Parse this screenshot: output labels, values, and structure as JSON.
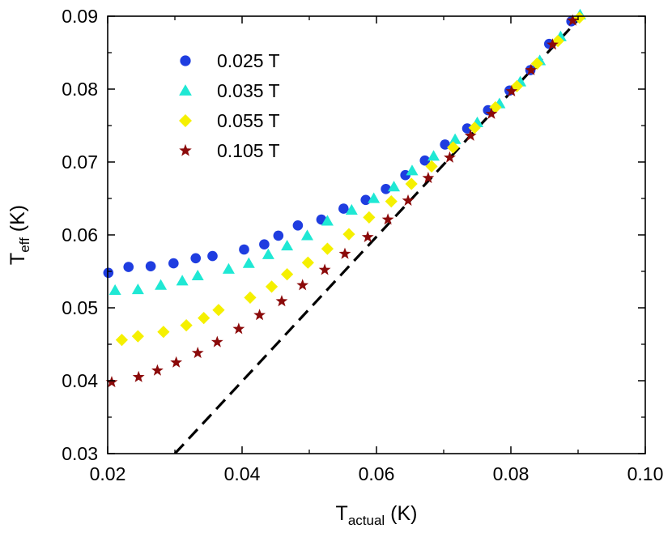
{
  "chart_data": {
    "type": "scatter",
    "xlabel": {
      "main": "T",
      "sub": "actual",
      "unit": " (K)"
    },
    "ylabel": {
      "main": "T",
      "sub": "eff",
      "unit": " (K)"
    },
    "xlim": [
      0.02,
      0.1
    ],
    "ylim": [
      0.03,
      0.09
    ],
    "x_ticks": [
      "0.02",
      "0.04",
      "0.06",
      "0.08",
      "0.10"
    ],
    "x_tick_values": [
      0.02,
      0.04,
      0.06,
      0.08,
      0.1
    ],
    "y_ticks": [
      "0.03",
      "0.04",
      "0.05",
      "0.06",
      "0.07",
      "0.08",
      "0.09"
    ],
    "y_tick_values": [
      0.03,
      0.04,
      0.05,
      0.06,
      0.07,
      0.08,
      0.09
    ],
    "grid": false,
    "legend_position": "top-left",
    "series": [
      {
        "name": "0.025 T",
        "marker": "circle",
        "color": "#1f3de0",
        "x": [
          0.0201,
          0.0231,
          0.0264,
          0.0298,
          0.0331,
          0.0356,
          0.0403,
          0.0433,
          0.0454,
          0.0483,
          0.0518,
          0.0551,
          0.0584,
          0.0614,
          0.0643,
          0.0672,
          0.0702,
          0.0735,
          0.0766,
          0.0798,
          0.0829,
          0.0857,
          0.089
        ],
        "y": [
          0.0548,
          0.0556,
          0.0557,
          0.0561,
          0.0568,
          0.0571,
          0.058,
          0.0587,
          0.0599,
          0.0613,
          0.0621,
          0.0636,
          0.0648,
          0.0663,
          0.0682,
          0.0702,
          0.0724,
          0.0746,
          0.0771,
          0.0798,
          0.0826,
          0.0862,
          0.0893
        ]
      },
      {
        "name": "0.035 T",
        "marker": "triangle",
        "color": "#1fe8d4",
        "x": [
          0.0211,
          0.0245,
          0.0279,
          0.0311,
          0.0334,
          0.038,
          0.041,
          0.0439,
          0.0467,
          0.0497,
          0.0527,
          0.0563,
          0.0596,
          0.0626,
          0.0653,
          0.0685,
          0.0717,
          0.075,
          0.0783,
          0.0814,
          0.0843,
          0.0874,
          0.0903
        ],
        "y": [
          0.0524,
          0.0525,
          0.0531,
          0.0537,
          0.0544,
          0.0553,
          0.0561,
          0.0573,
          0.0585,
          0.0599,
          0.0619,
          0.0634,
          0.065,
          0.0666,
          0.0688,
          0.0708,
          0.0731,
          0.0754,
          0.078,
          0.081,
          0.0839,
          0.0872,
          0.0902
        ]
      },
      {
        "name": "0.055 T",
        "marker": "diamond",
        "color": "#f5f000",
        "x": [
          0.0221,
          0.0245,
          0.0283,
          0.0317,
          0.0343,
          0.0365,
          0.0412,
          0.0444,
          0.0467,
          0.0498,
          0.0527,
          0.0559,
          0.0589,
          0.0622,
          0.0652,
          0.0682,
          0.0714,
          0.0746,
          0.0777,
          0.0809,
          0.0839,
          0.087,
          0.0902
        ],
        "y": [
          0.0456,
          0.0461,
          0.0467,
          0.0476,
          0.0486,
          0.0497,
          0.0514,
          0.0529,
          0.0546,
          0.0562,
          0.0581,
          0.0601,
          0.0624,
          0.0646,
          0.067,
          0.0694,
          0.072,
          0.0747,
          0.0775,
          0.0804,
          0.0835,
          0.0866,
          0.0898
        ]
      },
      {
        "name": "0.105 T",
        "marker": "star",
        "color": "#8b0a0a",
        "x": [
          0.0206,
          0.0246,
          0.0274,
          0.0302,
          0.0334,
          0.0363,
          0.0395,
          0.0426,
          0.0459,
          0.049,
          0.0523,
          0.0553,
          0.0587,
          0.0617,
          0.0647,
          0.0677,
          0.0709,
          0.074,
          0.0771,
          0.0801,
          0.083,
          0.0862,
          0.0892
        ],
        "y": [
          0.0398,
          0.0405,
          0.0414,
          0.0425,
          0.0438,
          0.0453,
          0.0471,
          0.049,
          0.0509,
          0.0531,
          0.0552,
          0.0574,
          0.0597,
          0.0621,
          0.0647,
          0.0678,
          0.0706,
          0.0736,
          0.0766,
          0.0797,
          0.0826,
          0.0861,
          0.0894
        ]
      }
    ],
    "reference_line": {
      "style": "dashed",
      "color": "#000000",
      "x": [
        0.03,
        0.0905
      ],
      "y": [
        0.03,
        0.09
      ]
    }
  }
}
